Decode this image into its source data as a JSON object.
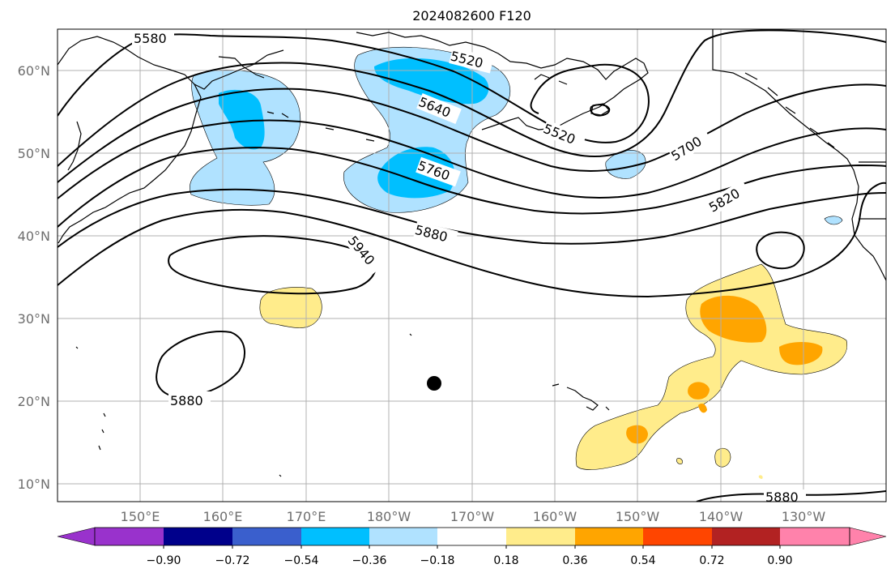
{
  "title": "2024082600 F120",
  "lat_labels": [
    "60°N",
    "50°N",
    "40°N",
    "30°N",
    "20°N",
    "10°N"
  ],
  "lon_labels": [
    "150°E",
    "160°E",
    "170°E",
    "180°W",
    "170°W",
    "160°W",
    "150°W",
    "140°W",
    "130°W"
  ],
  "contour_labels": [
    "5580",
    "5520",
    "5640",
    "5520",
    "5760",
    "5700",
    "5820",
    "5880",
    "5940",
    "5880",
    "5880"
  ],
  "colorbar": {
    "ticks": [
      "−0.90",
      "−0.72",
      "−0.54",
      "−0.36",
      "−0.18",
      "0.18",
      "0.36",
      "0.54",
      "0.72",
      "0.90"
    ],
    "colors": [
      "#9932cc",
      "#00008b",
      "#3a5fcd",
      "#00bfff",
      "#b0e2ff",
      "#ffffff",
      "#ffec8b",
      "#ffa500",
      "#ff4500",
      "#b22222",
      "#ff82ab"
    ]
  },
  "marker": "storm-position-dot"
}
